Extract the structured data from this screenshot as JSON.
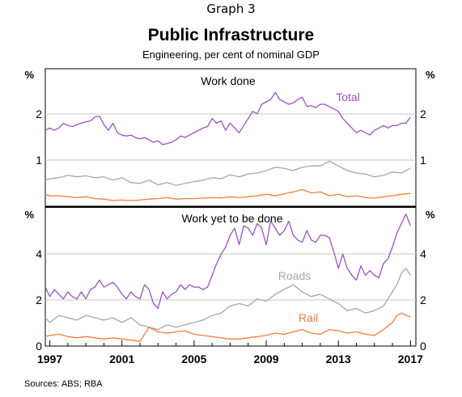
{
  "graph_label": "Graph 3",
  "title": "Public Infrastructure",
  "subtitle": "Engineering, per cent of nominal GDP",
  "source": "Sources:   ABS; RBA",
  "colors": {
    "total": "#9a52c8",
    "roads": "#a6a6a6",
    "rail": "#f47c3c",
    "grid": "#c4c4c4"
  },
  "chart_data": [
    {
      "type": "line",
      "title": "Work done",
      "ylabel": "%",
      "ylim": [
        0,
        2.9
      ],
      "yticks": [
        "1",
        "2"
      ],
      "xlim": [
        1996.75,
        2017.3
      ],
      "annotations": [
        {
          "text": "Total",
          "series": "Total"
        }
      ],
      "series": [
        {
          "name": "Total",
          "color": "#9a52c8",
          "x": [
            1996.75,
            1997,
            1997.25,
            1997.5,
            1997.75,
            1998,
            1998.25,
            1998.5,
            1998.75,
            1999,
            1999.25,
            1999.5,
            1999.75,
            2000,
            2000.25,
            2000.5,
            2000.75,
            2001,
            2001.25,
            2001.5,
            2001.75,
            2002,
            2002.25,
            2002.5,
            2002.75,
            2003,
            2003.25,
            2003.5,
            2003.75,
            2004,
            2004.25,
            2004.5,
            2004.75,
            2005,
            2005.25,
            2005.5,
            2005.75,
            2006,
            2006.25,
            2006.5,
            2006.75,
            2007,
            2007.25,
            2007.5,
            2007.75,
            2008,
            2008.25,
            2008.5,
            2008.75,
            2009,
            2009.25,
            2009.5,
            2009.75,
            2010,
            2010.25,
            2010.5,
            2010.75,
            2011,
            2011.25,
            2011.5,
            2011.75,
            2012,
            2012.25,
            2012.5,
            2012.75,
            2013,
            2013.25,
            2013.5,
            2013.75,
            2014,
            2014.25,
            2014.5,
            2014.75,
            2015,
            2015.25,
            2015.5,
            2015.75,
            2016,
            2016.25,
            2016.5,
            2016.75,
            2017
          ],
          "values": [
            1.6,
            1.65,
            1.6,
            1.65,
            1.75,
            1.7,
            1.68,
            1.72,
            1.75,
            1.78,
            1.8,
            1.88,
            1.9,
            1.72,
            1.6,
            1.75,
            1.55,
            1.5,
            1.48,
            1.5,
            1.45,
            1.42,
            1.45,
            1.4,
            1.35,
            1.38,
            1.3,
            1.32,
            1.35,
            1.4,
            1.48,
            1.45,
            1.5,
            1.55,
            1.6,
            1.65,
            1.68,
            1.85,
            1.75,
            1.8,
            1.6,
            1.75,
            1.65,
            1.55,
            1.7,
            1.85,
            2.0,
            1.95,
            2.15,
            2.2,
            2.25,
            2.4,
            2.25,
            2.2,
            2.15,
            2.18,
            2.25,
            2.3,
            2.1,
            2.12,
            2.08,
            2.15,
            2.15,
            2.1,
            2.05,
            2.0,
            1.85,
            1.75,
            1.65,
            1.55,
            1.6,
            1.55,
            1.5,
            1.6,
            1.65,
            1.7,
            1.65,
            1.7,
            1.7,
            1.75,
            1.75,
            1.88
          ]
        },
        {
          "name": "Roads",
          "color": "#a6a6a6",
          "x": [
            1996.75,
            1997,
            1997.5,
            1998,
            1998.5,
            1999,
            1999.5,
            2000,
            2000.5,
            2001,
            2001.5,
            2002,
            2002.5,
            2003,
            2003.5,
            2004,
            2004.5,
            2005,
            2005.5,
            2006,
            2006.5,
            2007,
            2007.5,
            2008,
            2008.5,
            2009,
            2009.5,
            2010,
            2010.5,
            2011,
            2011.5,
            2012,
            2012.5,
            2013,
            2013.5,
            2014,
            2014.5,
            2015,
            2015.5,
            2016,
            2016.5,
            2017
          ],
          "values": [
            0.55,
            0.58,
            0.6,
            0.65,
            0.62,
            0.64,
            0.6,
            0.62,
            0.55,
            0.6,
            0.5,
            0.48,
            0.55,
            0.45,
            0.5,
            0.44,
            0.48,
            0.52,
            0.55,
            0.6,
            0.58,
            0.66,
            0.62,
            0.68,
            0.7,
            0.75,
            0.82,
            0.8,
            0.75,
            0.82,
            0.85,
            0.85,
            0.95,
            0.85,
            0.75,
            0.7,
            0.68,
            0.62,
            0.65,
            0.72,
            0.7,
            0.8
          ]
        },
        {
          "name": "Rail",
          "color": "#f47c3c",
          "x": [
            1996.75,
            1997,
            1997.5,
            1998,
            1998.5,
            1999,
            1999.5,
            2000,
            2000.5,
            2001,
            2001.5,
            2002,
            2002.5,
            2003,
            2003.5,
            2004,
            2004.5,
            2005,
            2005.5,
            2006,
            2006.5,
            2007,
            2007.5,
            2008,
            2008.5,
            2009,
            2009.5,
            2010,
            2010.5,
            2011,
            2011.5,
            2012,
            2012.5,
            2013,
            2013.5,
            2014,
            2014.5,
            2015,
            2015.5,
            2016,
            2016.5,
            2017
          ],
          "values": [
            0.25,
            0.22,
            0.22,
            0.2,
            0.18,
            0.2,
            0.16,
            0.15,
            0.12,
            0.13,
            0.12,
            0.13,
            0.15,
            0.16,
            0.18,
            0.15,
            0.16,
            0.16,
            0.17,
            0.18,
            0.17,
            0.2,
            0.18,
            0.2,
            0.22,
            0.25,
            0.22,
            0.26,
            0.3,
            0.35,
            0.28,
            0.3,
            0.22,
            0.25,
            0.2,
            0.22,
            0.18,
            0.17,
            0.2,
            0.22,
            0.25,
            0.27
          ]
        }
      ]
    },
    {
      "type": "line",
      "title": "Work yet to be done",
      "ylabel": "%",
      "ylim": [
        0,
        5.9
      ],
      "yticks": [
        "0",
        "2",
        "4"
      ],
      "xlim": [
        1996.75,
        2017.3
      ],
      "xticks": [
        "1997",
        "2001",
        "2005",
        "2009",
        "2013",
        "2017"
      ],
      "annotations": [
        {
          "text": "Roads",
          "series": "Roads"
        },
        {
          "text": "Rail",
          "series": "Rail"
        }
      ],
      "series": [
        {
          "name": "Total",
          "color": "#9a52c8",
          "x": [
            1996.75,
            1997,
            1997.25,
            1997.5,
            1997.75,
            1998,
            1998.25,
            1998.5,
            1998.75,
            1999,
            1999.25,
            1999.5,
            1999.75,
            2000,
            2000.25,
            2000.5,
            2000.75,
            2001,
            2001.25,
            2001.5,
            2001.75,
            2002,
            2002.25,
            2002.5,
            2002.75,
            2003,
            2003.25,
            2003.5,
            2003.75,
            2004,
            2004.25,
            2004.5,
            2004.75,
            2005,
            2005.25,
            2005.5,
            2005.75,
            2006,
            2006.25,
            2006.5,
            2006.75,
            2007,
            2007.25,
            2007.5,
            2007.75,
            2008,
            2008.25,
            2008.5,
            2008.75,
            2009,
            2009.25,
            2009.5,
            2009.75,
            2010,
            2010.25,
            2010.5,
            2010.75,
            2011,
            2011.25,
            2011.5,
            2011.75,
            2012,
            2012.25,
            2012.5,
            2012.75,
            2013,
            2013.25,
            2013.5,
            2013.75,
            2014,
            2014.25,
            2014.5,
            2014.75,
            2015,
            2015.25,
            2015.5,
            2015.75,
            2016,
            2016.25,
            2016.5,
            2016.75,
            2017
          ],
          "values": [
            2.5,
            2.1,
            2.4,
            2.2,
            2.0,
            2.3,
            2.1,
            2.0,
            2.3,
            2.0,
            2.4,
            2.5,
            2.8,
            2.5,
            2.6,
            2.7,
            2.5,
            2.2,
            2.0,
            2.3,
            2.1,
            2.0,
            2.6,
            2.4,
            1.8,
            1.6,
            2.3,
            2.0,
            2.2,
            2.3,
            2.6,
            2.4,
            2.6,
            2.5,
            2.5,
            2.4,
            2.5,
            3.0,
            3.5,
            3.9,
            4.2,
            4.7,
            5.0,
            4.3,
            5.1,
            5.0,
            4.7,
            5.2,
            5.0,
            4.3,
            5.3,
            5.0,
            4.7,
            4.9,
            5.3,
            4.7,
            4.5,
            4.4,
            4.9,
            4.5,
            4.4,
            4.7,
            4.7,
            4.6,
            4.0,
            3.3,
            3.9,
            3.3,
            3.0,
            2.8,
            3.4,
            3.0,
            3.2,
            3.0,
            2.9,
            3.5,
            3.7,
            4.2,
            4.8,
            5.2,
            5.6,
            5.1
          ]
        },
        {
          "name": "Roads",
          "color": "#a6a6a6",
          "x": [
            1996.75,
            1997,
            1997.5,
            1998,
            1998.5,
            1999,
            1999.5,
            2000,
            2000.5,
            2001,
            2001.5,
            2002,
            2002.5,
            2003,
            2003.5,
            2004,
            2004.5,
            2005,
            2005.5,
            2006,
            2006.5,
            2007,
            2007.5,
            2008,
            2008.5,
            2009,
            2009.5,
            2010,
            2010.5,
            2011,
            2011.5,
            2012,
            2012.5,
            2013,
            2013.5,
            2014,
            2014.5,
            2015,
            2015.5,
            2016,
            2016.25,
            2016.5,
            2016.75,
            2017
          ],
          "values": [
            1.2,
            1.0,
            1.3,
            1.2,
            1.1,
            1.3,
            1.2,
            1.1,
            1.2,
            1.0,
            1.2,
            0.9,
            0.8,
            0.7,
            0.9,
            0.8,
            0.9,
            1.0,
            1.1,
            1.3,
            1.4,
            1.7,
            1.8,
            1.7,
            2.0,
            1.9,
            2.2,
            2.4,
            2.6,
            2.3,
            2.1,
            2.2,
            2.0,
            1.8,
            1.5,
            1.6,
            1.4,
            1.5,
            1.7,
            2.3,
            2.6,
            3.1,
            3.3,
            3.0
          ]
        },
        {
          "name": "Rail",
          "color": "#f47c3c",
          "x": [
            1996.75,
            1997,
            1997.5,
            1998,
            1998.5,
            1999,
            1999.5,
            2000,
            2000.5,
            2001,
            2001.5,
            2002,
            2002.5,
            2003,
            2003.5,
            2004,
            2004.5,
            2005,
            2005.5,
            2006,
            2006.5,
            2007,
            2007.5,
            2008,
            2008.5,
            2009,
            2009.5,
            2010,
            2010.5,
            2011,
            2011.5,
            2012,
            2012.5,
            2013,
            2013.5,
            2014,
            2014.5,
            2015,
            2015.5,
            2016,
            2016.25,
            2016.5,
            2016.75,
            2017
          ],
          "values": [
            0.4,
            0.45,
            0.5,
            0.4,
            0.35,
            0.4,
            0.35,
            0.3,
            0.35,
            0.3,
            0.25,
            0.2,
            0.8,
            0.6,
            0.55,
            0.6,
            0.65,
            0.5,
            0.45,
            0.4,
            0.35,
            0.3,
            0.3,
            0.35,
            0.4,
            0.45,
            0.55,
            0.5,
            0.6,
            0.7,
            0.55,
            0.5,
            0.7,
            0.65,
            0.55,
            0.6,
            0.5,
            0.45,
            0.7,
            1.0,
            1.3,
            1.4,
            1.3,
            1.25
          ]
        }
      ]
    }
  ]
}
